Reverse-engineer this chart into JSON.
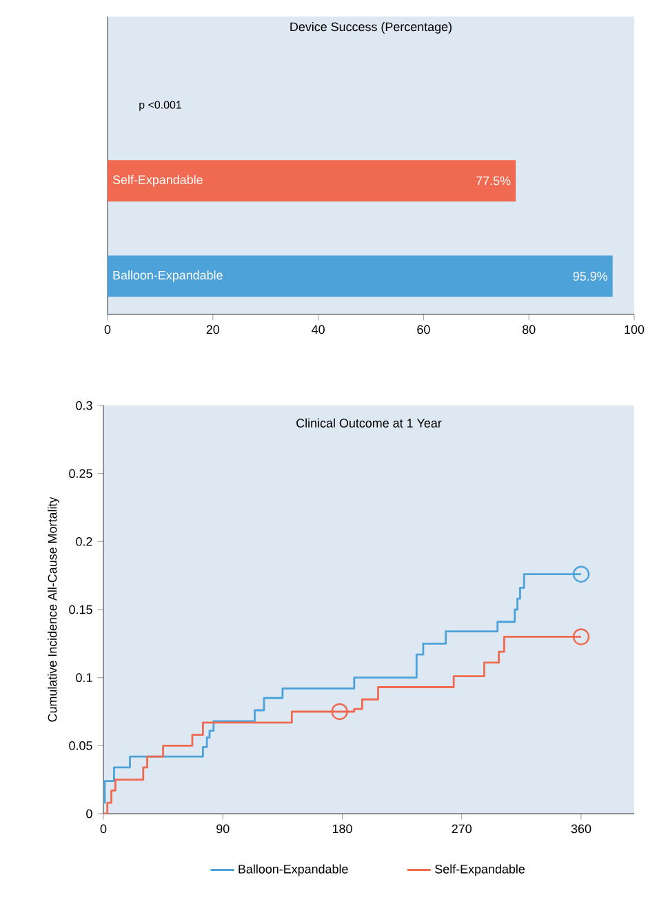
{
  "chart_data": [
    {
      "type": "bar",
      "orientation": "horizontal",
      "title": "Device Success (Percentage)",
      "categories": [
        "Self-Expandable",
        "Balloon-Expandable"
      ],
      "values": [
        77.5,
        95.9
      ],
      "colors": [
        "#ef6a50",
        "#4da2da"
      ],
      "value_labels": [
        "77.5%",
        "95.9%"
      ],
      "xlim": [
        0,
        100
      ],
      "xticks": [
        0,
        20,
        40,
        60,
        80,
        100
      ],
      "annotations": [
        "p <0.001"
      ]
    },
    {
      "type": "step",
      "title": "Clinical Outcome at 1 Year",
      "ylabel": "Cumulative Incidence All-Cause Mortality",
      "xlim": [
        0,
        400
      ],
      "xticks": [
        0,
        90,
        180,
        270,
        360
      ],
      "ylim": [
        0,
        0.3
      ],
      "yticks": [
        0,
        0.05,
        0.1,
        0.15,
        0.2,
        0.25,
        0.3
      ],
      "legend": "bottom",
      "series": [
        {
          "name": "Balloon-Expandable",
          "color": "#4da2da",
          "x": [
            0,
            1,
            8,
            20,
            75,
            78,
            80,
            83,
            114,
            121,
            135,
            189,
            236,
            241,
            258,
            297,
            310,
            312,
            314,
            317,
            360
          ],
          "values": [
            0.008,
            0.024,
            0.034,
            0.042,
            0.049,
            0.056,
            0.061,
            0.068,
            0.076,
            0.085,
            0.092,
            0.1,
            0.117,
            0.125,
            0.134,
            0.141,
            0.15,
            0.158,
            0.166,
            0.176,
            0.176
          ]
        },
        {
          "name": "Self-Expandable",
          "color": "#ef6a50",
          "x": [
            0,
            3,
            6,
            9,
            30,
            33,
            45,
            67,
            75,
            142,
            189,
            195,
            207,
            264,
            287,
            298,
            302,
            360
          ],
          "values": [
            0,
            0.008,
            0.017,
            0.025,
            0.034,
            0.042,
            0.05,
            0.058,
            0.067,
            0.075,
            0.077,
            0.084,
            0.093,
            0.101,
            0.111,
            0.119,
            0.13,
            0.13
          ]
        },
        {
          "type": "scatter",
          "marker": "circle",
          "color": "#4da2da",
          "x": [
            360
          ],
          "values": [
            0.176
          ]
        },
        {
          "type": "scatter",
          "marker": "circle",
          "color": "#ef6a50",
          "x": [
            178,
            360
          ],
          "values": [
            0.075,
            0.13
          ]
        }
      ]
    }
  ]
}
